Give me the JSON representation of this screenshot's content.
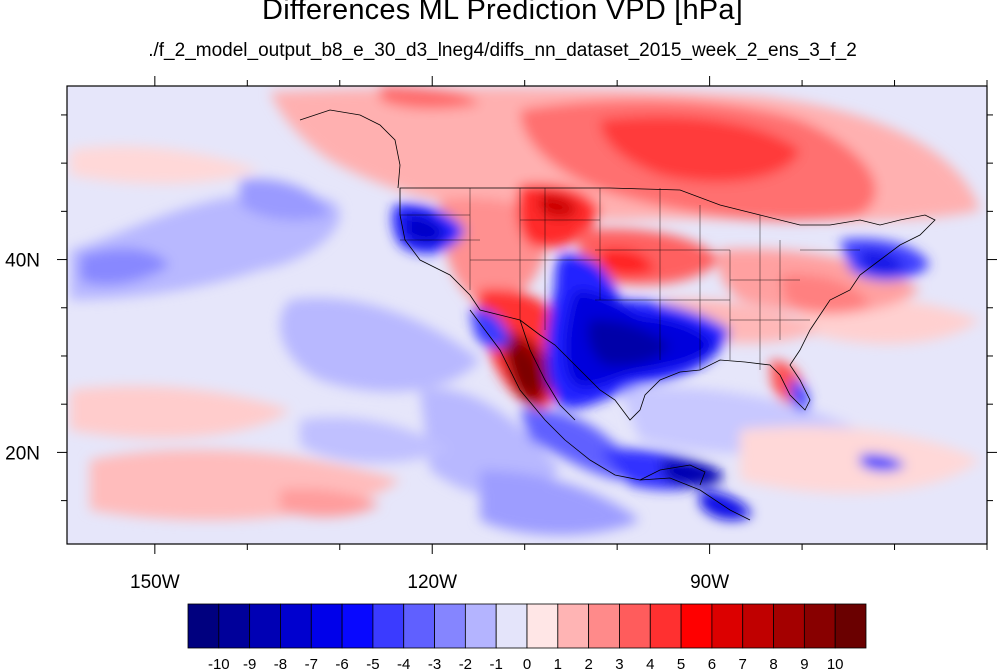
{
  "title": "Differences ML Prediction VPD [hPa]",
  "subtitle": "./f_2_model_output_b8_e_30_d3_lneg4/diffs_nn_dataset_2015_week_2_ens_3_f_2",
  "axes": {
    "x_ticks": [
      {
        "lon": -150,
        "label": "150W"
      },
      {
        "lon": -120,
        "label": "120W"
      },
      {
        "lon": -90,
        "label": "90W"
      }
    ],
    "y_ticks": [
      {
        "lat": 40,
        "label": "40N"
      },
      {
        "lat": 20,
        "label": "20N"
      }
    ],
    "lon_range": [
      -159.5,
      -60
    ],
    "lat_range": [
      10.5,
      58
    ]
  },
  "colorbar": {
    "labels": [
      "-10",
      "-9",
      "-8",
      "-7",
      "-6",
      "-5",
      "-4",
      "-3",
      "-2",
      "-1",
      "0",
      "1",
      "2",
      "3",
      "4",
      "5",
      "6",
      "7",
      "8",
      "9",
      "10"
    ],
    "colors": [
      "#00007f",
      "#00009a",
      "#0000b4",
      "#0000cf",
      "#0000ea",
      "#0808ff",
      "#3b3bff",
      "#6060ff",
      "#8585ff",
      "#b4b4ff",
      "#e4e4fa",
      "#ffe6e6",
      "#ffb4b4",
      "#ff8a8a",
      "#ff5c5c",
      "#ff3030",
      "#ff0000",
      "#dc0000",
      "#c00000",
      "#a40000",
      "#880000",
      "#6a0000"
    ]
  }
}
